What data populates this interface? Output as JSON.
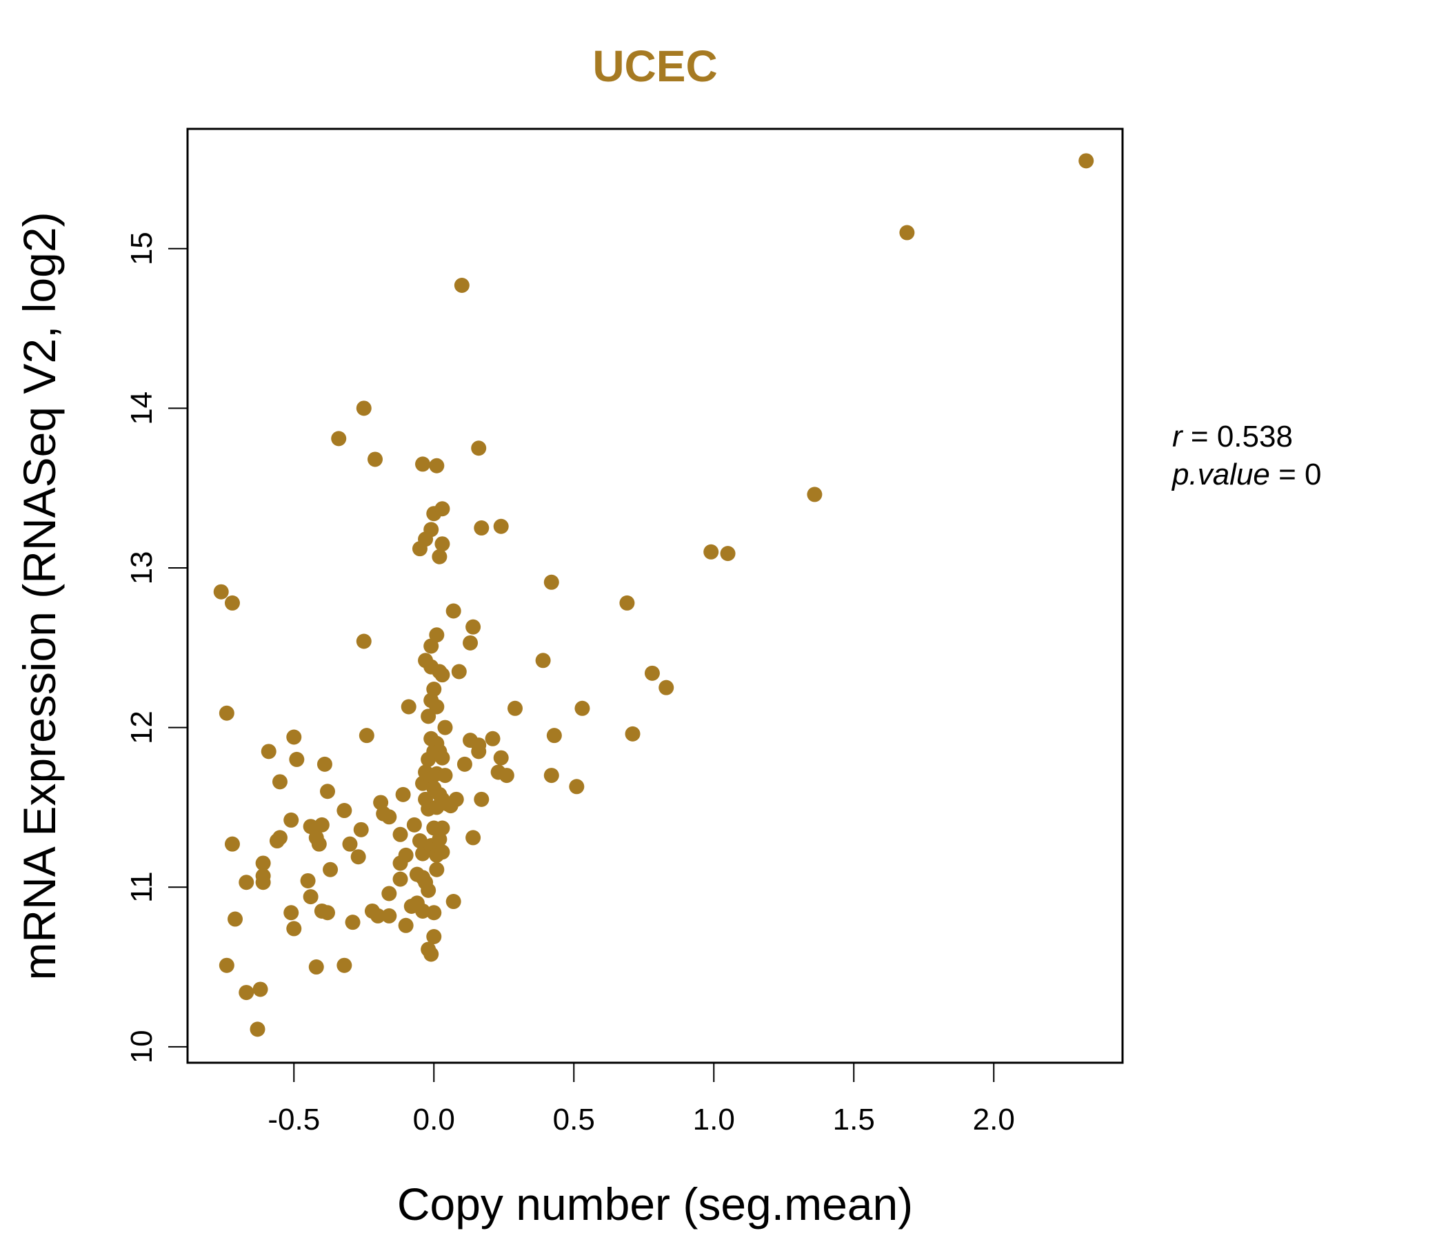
{
  "chart_data": {
    "type": "scatter",
    "title": "UCEC",
    "xlabel": "Copy number (seg.mean)",
    "ylabel": "mRNA Expression (RNASeq V2, log2)",
    "xlim": [
      -0.88,
      2.46
    ],
    "ylim": [
      9.9,
      15.75
    ],
    "xticks": [
      "-0.5",
      "0.0",
      "0.5",
      "1.0",
      "1.5",
      "2.0"
    ],
    "yticks": [
      "10",
      "11",
      "12",
      "13",
      "14",
      "15"
    ],
    "grid": false,
    "point_color": "#A67A22",
    "annotation": {
      "r_label": "r",
      "r_value": "0.538",
      "p_label": "p.value",
      "p_value": "0"
    },
    "series": [
      {
        "points": [
          [
            -0.76,
            12.85
          ],
          [
            -0.72,
            12.78
          ],
          [
            -0.74,
            12.09
          ],
          [
            -0.72,
            11.27
          ],
          [
            -0.71,
            10.8
          ],
          [
            -0.74,
            10.51
          ],
          [
            -0.67,
            10.34
          ],
          [
            -0.63,
            10.11
          ],
          [
            -0.62,
            10.36
          ],
          [
            -0.67,
            11.03
          ],
          [
            -0.61,
            11.03
          ],
          [
            -0.61,
            11.07
          ],
          [
            -0.61,
            11.15
          ],
          [
            -0.59,
            11.85
          ],
          [
            -0.55,
            11.66
          ],
          [
            -0.56,
            11.29
          ],
          [
            -0.55,
            11.31
          ],
          [
            -0.51,
            11.42
          ],
          [
            -0.5,
            11.94
          ],
          [
            -0.49,
            11.8
          ],
          [
            -0.51,
            10.84
          ],
          [
            -0.5,
            10.74
          ],
          [
            -0.45,
            11.04
          ],
          [
            -0.44,
            10.94
          ],
          [
            -0.44,
            11.38
          ],
          [
            -0.42,
            11.31
          ],
          [
            -0.41,
            11.27
          ],
          [
            -0.4,
            11.39
          ],
          [
            -0.42,
            10.5
          ],
          [
            -0.4,
            10.85
          ],
          [
            -0.38,
            10.84
          ],
          [
            -0.39,
            11.77
          ],
          [
            -0.38,
            11.6
          ],
          [
            -0.37,
            11.11
          ],
          [
            -0.34,
            13.81
          ],
          [
            -0.32,
            11.48
          ],
          [
            -0.32,
            10.51
          ],
          [
            -0.3,
            11.27
          ],
          [
            -0.29,
            10.78
          ],
          [
            -0.27,
            11.19
          ],
          [
            -0.26,
            11.36
          ],
          [
            -0.25,
            14.0
          ],
          [
            -0.25,
            12.54
          ],
          [
            -0.24,
            11.95
          ],
          [
            -0.22,
            10.85
          ],
          [
            -0.21,
            13.68
          ],
          [
            -0.2,
            10.82
          ],
          [
            -0.19,
            11.53
          ],
          [
            -0.18,
            11.46
          ],
          [
            -0.16,
            11.44
          ],
          [
            -0.16,
            10.96
          ],
          [
            -0.16,
            10.82
          ],
          [
            -0.12,
            11.33
          ],
          [
            -0.12,
            11.15
          ],
          [
            -0.12,
            11.05
          ],
          [
            -0.11,
            11.58
          ],
          [
            -0.1,
            11.2
          ],
          [
            -0.1,
            10.76
          ],
          [
            -0.09,
            12.13
          ],
          [
            -0.08,
            10.88
          ],
          [
            -0.07,
            11.39
          ],
          [
            -0.06,
            10.9
          ],
          [
            -0.06,
            11.08
          ],
          [
            -0.05,
            11.29
          ],
          [
            -0.05,
            13.12
          ],
          [
            -0.04,
            13.65
          ],
          [
            -0.04,
            11.65
          ],
          [
            -0.04,
            11.21
          ],
          [
            -0.04,
            11.06
          ],
          [
            -0.04,
            10.85
          ],
          [
            -0.03,
            12.42
          ],
          [
            -0.03,
            11.72
          ],
          [
            -0.03,
            11.55
          ],
          [
            -0.03,
            11.03
          ],
          [
            -0.03,
            13.18
          ],
          [
            -0.02,
            12.07
          ],
          [
            -0.02,
            11.8
          ],
          [
            -0.02,
            11.49
          ],
          [
            -0.02,
            10.98
          ],
          [
            -0.02,
            10.61
          ],
          [
            -0.01,
            13.24
          ],
          [
            -0.01,
            12.51
          ],
          [
            -0.01,
            12.38
          ],
          [
            -0.01,
            12.17
          ],
          [
            -0.01,
            11.93
          ],
          [
            -0.01,
            11.68
          ],
          [
            -0.01,
            11.26
          ],
          [
            -0.01,
            10.58
          ],
          [
            0.0,
            13.34
          ],
          [
            0.0,
            12.24
          ],
          [
            0.0,
            11.85
          ],
          [
            0.0,
            11.62
          ],
          [
            0.0,
            11.37
          ],
          [
            0.0,
            10.84
          ],
          [
            0.0,
            10.69
          ],
          [
            0.01,
            13.64
          ],
          [
            0.01,
            12.58
          ],
          [
            0.01,
            12.13
          ],
          [
            0.01,
            11.9
          ],
          [
            0.01,
            11.71
          ],
          [
            0.01,
            11.5
          ],
          [
            0.01,
            11.2
          ],
          [
            0.01,
            11.11
          ],
          [
            0.02,
            13.07
          ],
          [
            0.02,
            12.35
          ],
          [
            0.02,
            11.85
          ],
          [
            0.02,
            11.58
          ],
          [
            0.02,
            11.3
          ],
          [
            0.03,
            13.15
          ],
          [
            0.03,
            13.37
          ],
          [
            0.03,
            11.81
          ],
          [
            0.03,
            11.55
          ],
          [
            0.03,
            11.37
          ],
          [
            0.03,
            11.22
          ],
          [
            0.03,
            12.33
          ],
          [
            0.04,
            12.0
          ],
          [
            0.04,
            11.7
          ],
          [
            0.05,
            11.52
          ],
          [
            0.06,
            11.51
          ],
          [
            0.07,
            10.91
          ],
          [
            0.07,
            12.73
          ],
          [
            0.08,
            11.55
          ],
          [
            0.09,
            12.35
          ],
          [
            0.1,
            14.77
          ],
          [
            0.11,
            11.77
          ],
          [
            0.13,
            12.53
          ],
          [
            0.13,
            11.92
          ],
          [
            0.14,
            11.31
          ],
          [
            0.14,
            12.63
          ],
          [
            0.16,
            13.75
          ],
          [
            0.16,
            11.85
          ],
          [
            0.16,
            11.89
          ],
          [
            0.17,
            13.25
          ],
          [
            0.17,
            11.55
          ],
          [
            0.21,
            11.93
          ],
          [
            0.23,
            11.72
          ],
          [
            0.24,
            11.81
          ],
          [
            0.24,
            13.26
          ],
          [
            0.26,
            11.7
          ],
          [
            0.29,
            12.12
          ],
          [
            0.39,
            12.42
          ],
          [
            0.42,
            12.91
          ],
          [
            0.42,
            11.7
          ],
          [
            0.43,
            11.95
          ],
          [
            0.51,
            11.63
          ],
          [
            0.53,
            12.12
          ],
          [
            0.69,
            12.78
          ],
          [
            0.71,
            11.96
          ],
          [
            0.78,
            12.34
          ],
          [
            0.83,
            12.25
          ],
          [
            0.99,
            13.1
          ],
          [
            1.05,
            13.09
          ],
          [
            1.36,
            13.46
          ],
          [
            1.69,
            15.1
          ],
          [
            2.33,
            15.55
          ]
        ]
      }
    ]
  }
}
